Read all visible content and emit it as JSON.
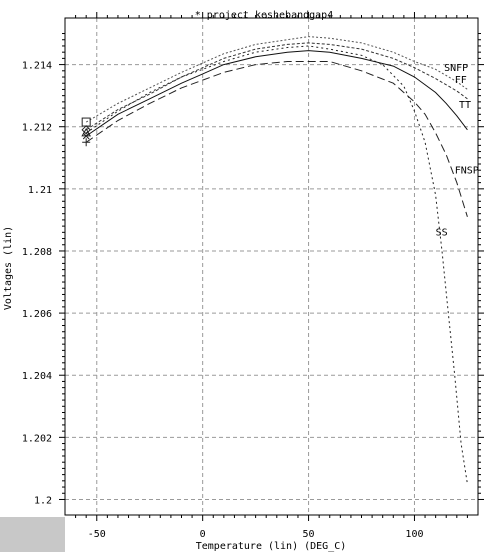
{
  "chart_data": {
    "type": "line",
    "title": "* project keshebandgap4",
    "xlabel": "Temperature (lin) (DEG_C)",
    "ylabel": "Voltages (lin)",
    "xlim": [
      -65,
      130
    ],
    "ylim": [
      1.1995,
      1.2155
    ],
    "x_ticks": [
      -50,
      0,
      50,
      100
    ],
    "x_tick_labels": [
      "-50",
      "0",
      "50",
      "100"
    ],
    "y_ticks": [
      1.2,
      1.202,
      1.204,
      1.206,
      1.208,
      1.21,
      1.212,
      1.214
    ],
    "y_tick_labels": [
      "1.2",
      "1.202",
      "1.204",
      "1.206",
      "1.208",
      "1.21",
      "1.212",
      "1.214"
    ],
    "grid": true,
    "series": [
      {
        "name": "SNFP",
        "dash": "2,2",
        "color": "#555555",
        "x": [
          -55,
          -40,
          -25,
          -10,
          0,
          10,
          25,
          40,
          50,
          60,
          75,
          90,
          100,
          110,
          120,
          125
        ],
        "y": [
          1.21215,
          1.21275,
          1.21325,
          1.21375,
          1.21405,
          1.21435,
          1.21465,
          1.2148,
          1.2149,
          1.21485,
          1.2147,
          1.2144,
          1.2141,
          1.21385,
          1.21345,
          1.2132
        ]
      },
      {
        "name": "FF",
        "dash": "3,2",
        "color": "#333333",
        "x": [
          -55,
          -40,
          -25,
          -10,
          0,
          10,
          25,
          40,
          50,
          60,
          75,
          90,
          100,
          110,
          120,
          125
        ],
        "y": [
          1.2119,
          1.21255,
          1.21305,
          1.2136,
          1.2139,
          1.2142,
          1.2145,
          1.21465,
          1.2147,
          1.21465,
          1.2145,
          1.2142,
          1.2139,
          1.21355,
          1.21315,
          1.2129
        ]
      },
      {
        "name": "TT",
        "dash": "",
        "color": "#111111",
        "x": [
          -55,
          -40,
          -25,
          -10,
          0,
          10,
          25,
          40,
          50,
          60,
          75,
          90,
          100,
          110,
          115,
          120,
          125
        ],
        "y": [
          1.2117,
          1.2124,
          1.2129,
          1.2134,
          1.2137,
          1.214,
          1.21425,
          1.2144,
          1.21445,
          1.2144,
          1.2142,
          1.21395,
          1.2136,
          1.2131,
          1.21275,
          1.21235,
          1.2119
        ]
      },
      {
        "name": "FNSP",
        "dash": "8,4",
        "color": "#222222",
        "x": [
          -55,
          -40,
          -25,
          -10,
          0,
          10,
          25,
          40,
          50,
          60,
          75,
          90,
          100,
          105,
          110,
          115,
          120,
          125
        ],
        "y": [
          1.2115,
          1.2122,
          1.21275,
          1.21325,
          1.2135,
          1.21375,
          1.214,
          1.2141,
          1.2141,
          1.2141,
          1.2138,
          1.2134,
          1.2128,
          1.2124,
          1.2118,
          1.2111,
          1.2102,
          1.2091
        ]
      },
      {
        "name": "SS",
        "dash": "2,3",
        "color": "#222222",
        "x": [
          -55,
          -40,
          -25,
          -10,
          0,
          10,
          25,
          40,
          50,
          60,
          75,
          85,
          95,
          100,
          105,
          110,
          113,
          116,
          119,
          122,
          125
        ],
        "y": [
          1.2118,
          1.2125,
          1.2131,
          1.2136,
          1.21385,
          1.2141,
          1.2144,
          1.21455,
          1.2146,
          1.2145,
          1.2143,
          1.214,
          1.2133,
          1.2125,
          1.2115,
          1.2098,
          1.208,
          1.206,
          1.204,
          1.2018,
          1.2005
        ]
      }
    ],
    "annotations": [
      "SNFP",
      "FF",
      "TT",
      "FNSP",
      "SS"
    ]
  }
}
